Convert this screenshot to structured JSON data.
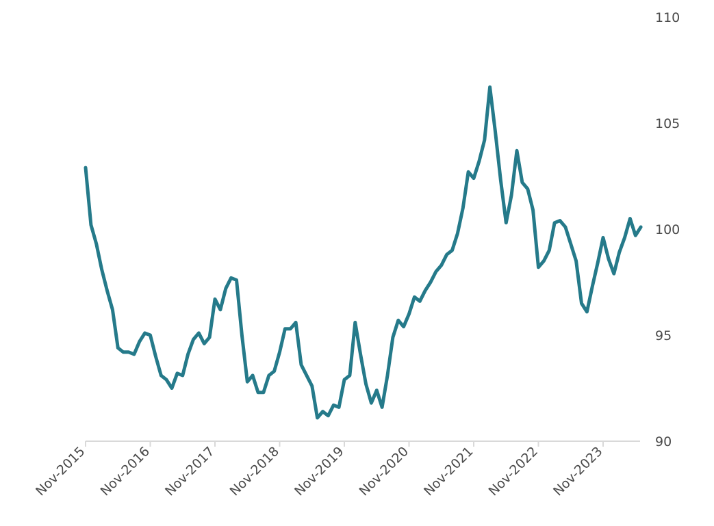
{
  "chart_data": {
    "type": "line",
    "title": "",
    "xlabel": "",
    "ylabel": "",
    "ylim": [
      90,
      110
    ],
    "yticks": [
      90,
      95,
      100,
      105,
      110
    ],
    "y_axis_position": "right",
    "grid": false,
    "legend": "none",
    "x_tick_labels": [
      "Nov-2015",
      "Nov-2016",
      "Nov-2017",
      "Nov-2018",
      "Nov-2019",
      "Nov-2020",
      "Nov-2021",
      "Nov-2022",
      "Nov-2023"
    ],
    "colors": {
      "line": "#257a8a",
      "axis": "#d9d9d9",
      "text": "#4a4a4a"
    },
    "series": [
      {
        "x": [
          "2015-11",
          "2015-12",
          "2016-01",
          "2016-02",
          "2016-03",
          "2016-04",
          "2016-05",
          "2016-06",
          "2016-07",
          "2016-08",
          "2016-09",
          "2016-10",
          "2016-11",
          "2016-12",
          "2017-01",
          "2017-02",
          "2017-03",
          "2017-04",
          "2017-05",
          "2017-06",
          "2017-07",
          "2017-08",
          "2017-09",
          "2017-10",
          "2017-11",
          "2017-12",
          "2018-01",
          "2018-02",
          "2018-03",
          "2018-04",
          "2018-05",
          "2018-06",
          "2018-07",
          "2018-08",
          "2018-09",
          "2018-10",
          "2018-11",
          "2018-12",
          "2019-01",
          "2019-02",
          "2019-03",
          "2019-04",
          "2019-05",
          "2019-06",
          "2019-07",
          "2019-08",
          "2019-09",
          "2019-10",
          "2019-11",
          "2019-12",
          "2020-01",
          "2020-02",
          "2020-03",
          "2020-04",
          "2020-05",
          "2020-06",
          "2020-07",
          "2020-08",
          "2020-09",
          "2020-10",
          "2020-11",
          "2020-12",
          "2021-01",
          "2021-02",
          "2021-03",
          "2021-04",
          "2021-05",
          "2021-06",
          "2021-07",
          "2021-08",
          "2021-09",
          "2021-10",
          "2021-11",
          "2021-12",
          "2022-01",
          "2022-02",
          "2022-03",
          "2022-04",
          "2022-05",
          "2022-06",
          "2022-07",
          "2022-08",
          "2022-09",
          "2022-10",
          "2022-11",
          "2022-12",
          "2023-01",
          "2023-02",
          "2023-03",
          "2023-04",
          "2023-05",
          "2023-06",
          "2023-07",
          "2023-08",
          "2023-09",
          "2023-10",
          "2023-11",
          "2023-12",
          "2024-01",
          "2024-02",
          "2024-03",
          "2024-04",
          "2024-05",
          "2024-06"
        ],
        "values": [
          102.9,
          100.2,
          99.3,
          98.1,
          97.1,
          96.2,
          94.4,
          94.2,
          94.2,
          94.1,
          94.7,
          95.1,
          95.0,
          94.0,
          93.1,
          92.9,
          92.5,
          93.2,
          93.1,
          94.1,
          94.8,
          95.1,
          94.6,
          94.9,
          96.7,
          96.2,
          97.2,
          97.7,
          97.6,
          95.0,
          92.8,
          93.1,
          92.3,
          92.3,
          93.1,
          93.3,
          94.2,
          95.3,
          95.3,
          95.6,
          93.6,
          93.1,
          92.6,
          91.1,
          91.4,
          91.2,
          91.7,
          91.6,
          92.9,
          93.1,
          95.6,
          94.1,
          92.7,
          91.8,
          92.4,
          91.6,
          93.1,
          94.9,
          95.7,
          95.4,
          96.0,
          96.8,
          96.6,
          97.1,
          97.5,
          98.0,
          98.3,
          98.8,
          99.0,
          99.8,
          101.0,
          102.7,
          102.4,
          103.2,
          104.2,
          106.7,
          104.6,
          102.3,
          100.3,
          101.6,
          103.7,
          102.2,
          101.9,
          100.9,
          98.2,
          98.5,
          99.0,
          100.3,
          100.4,
          100.1,
          99.3,
          98.5,
          96.5,
          96.1,
          97.3,
          98.4,
          99.6,
          98.6,
          97.9,
          98.9,
          99.6,
          100.5,
          99.7,
          100.1
        ]
      }
    ]
  }
}
